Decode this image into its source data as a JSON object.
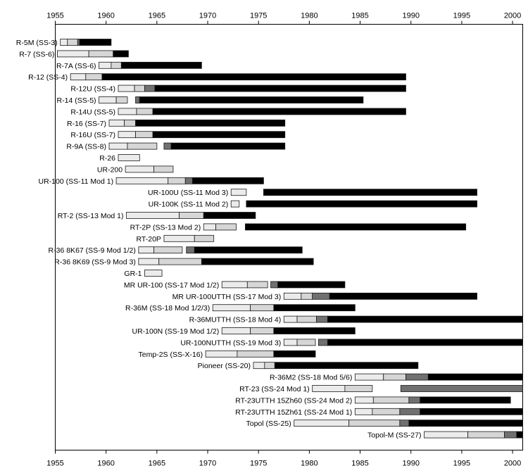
{
  "chart_data": {
    "type": "gantt",
    "xlim": [
      1955,
      2001
    ],
    "x_ticks": [
      "1955",
      "1960",
      "1965",
      "1970",
      "1975",
      "1980",
      "1985",
      "1990",
      "1995",
      "2000"
    ],
    "grid": false,
    "phase_colors": [
      "#ebebeb",
      "#d6d6d6",
      "#707070",
      "#000000"
    ],
    "rows": [
      {
        "label": "R-5M (SS-3)",
        "segments": [
          [
            1955.5,
            1956.2,
            0
          ],
          [
            1956.2,
            1957.2,
            1
          ],
          [
            1957.2,
            1957.4,
            2
          ],
          [
            1957.4,
            1960.5,
            3
          ]
        ]
      },
      {
        "label": "R-7 (SS-6)",
        "segments": [
          [
            1955.2,
            1958.3,
            0
          ],
          [
            1958.3,
            1960.7,
            1
          ],
          [
            1960.7,
            1962.2,
            3
          ]
        ]
      },
      {
        "label": "R-7A (SS-6)",
        "segments": [
          [
            1959.3,
            1960.5,
            0
          ],
          [
            1960.5,
            1961.5,
            1
          ],
          [
            1961.5,
            1969.4,
            3
          ]
        ]
      },
      {
        "label": "R-12 (SS-4)",
        "segments": [
          [
            1956.5,
            1958.0,
            0
          ],
          [
            1958.0,
            1959.6,
            1
          ],
          [
            1959.6,
            1989.5,
            3
          ]
        ]
      },
      {
        "label": "R-12U (SS-4)",
        "segments": [
          [
            1961.2,
            1962.8,
            0
          ],
          [
            1962.8,
            1963.8,
            1
          ],
          [
            1963.8,
            1964.8,
            2
          ],
          [
            1964.8,
            1989.5,
            3
          ]
        ]
      },
      {
        "label": "R-14 (SS-5)",
        "segments": [
          [
            1959.3,
            1961.0,
            0
          ],
          [
            1961.0,
            1962.1,
            1
          ],
          [
            1962.9,
            1963.3,
            2
          ],
          [
            1963.3,
            1985.3,
            3
          ]
        ]
      },
      {
        "label": "R-14U (SS-5)",
        "segments": [
          [
            1961.2,
            1963.0,
            0
          ],
          [
            1963.0,
            1964.6,
            1
          ],
          [
            1964.6,
            1989.5,
            3
          ]
        ]
      },
      {
        "label": "R-16 (SS-7)",
        "segments": [
          [
            1960.3,
            1961.8,
            0
          ],
          [
            1961.8,
            1962.9,
            1
          ],
          [
            1962.9,
            1977.6,
            3
          ]
        ]
      },
      {
        "label": "R-16U (SS-7)",
        "segments": [
          [
            1961.2,
            1962.9,
            0
          ],
          [
            1962.9,
            1964.6,
            1
          ],
          [
            1964.6,
            1977.6,
            3
          ]
        ]
      },
      {
        "label": "R-9A (SS-8)",
        "segments": [
          [
            1960.3,
            1962.1,
            0
          ],
          [
            1962.1,
            1965.0,
            1
          ],
          [
            1965.7,
            1966.4,
            2
          ],
          [
            1966.4,
            1977.6,
            3
          ]
        ]
      },
      {
        "label": "R-26",
        "segments": [
          [
            1961.2,
            1963.3,
            0
          ]
        ]
      },
      {
        "label": "UR-200",
        "segments": [
          [
            1961.9,
            1964.7,
            0
          ],
          [
            1964.7,
            1966.6,
            1
          ]
        ]
      },
      {
        "label": "UR-100 (SS-11 Mod 1)",
        "segments": [
          [
            1961.0,
            1966.1,
            0
          ],
          [
            1966.1,
            1967.8,
            1
          ],
          [
            1967.8,
            1968.5,
            2
          ],
          [
            1968.5,
            1975.5,
            3
          ]
        ]
      },
      {
        "label": "UR-100U (SS-11 Mod 3)",
        "segments": [
          [
            1972.3,
            1973.8,
            0
          ],
          [
            1975.5,
            1996.5,
            3
          ]
        ]
      },
      {
        "label": "UR-100K (SS-11 Mod 2)",
        "segments": [
          [
            1972.3,
            1973.1,
            0
          ],
          [
            1973.8,
            1996.5,
            3
          ]
        ]
      },
      {
        "label": "RT-2 (SS-13 Mod 1)",
        "segments": [
          [
            1962.0,
            1967.2,
            0
          ],
          [
            1967.2,
            1969.6,
            1
          ],
          [
            1969.6,
            1974.7,
            3
          ]
        ]
      },
      {
        "label": "RT-2P (SS-13 Mod 2)",
        "segments": [
          [
            1969.6,
            1970.8,
            0
          ],
          [
            1970.8,
            1972.8,
            1
          ],
          [
            1973.7,
            1995.4,
            3
          ]
        ]
      },
      {
        "label": "RT-20P",
        "segments": [
          [
            1965.7,
            1968.7,
            0
          ],
          [
            1968.7,
            1970.6,
            1
          ]
        ]
      },
      {
        "label": "R-36 8K67 (SS-9 Mod 1/2)",
        "segments": [
          [
            1963.2,
            1964.7,
            0
          ],
          [
            1964.7,
            1967.5,
            1
          ],
          [
            1967.9,
            1968.7,
            2
          ],
          [
            1968.7,
            1979.3,
            3
          ]
        ]
      },
      {
        "label": "R-36 8K69 (SS-9 Mod 3)",
        "segments": [
          [
            1963.2,
            1965.2,
            0
          ],
          [
            1965.2,
            1969.4,
            1
          ],
          [
            1969.4,
            1980.4,
            3
          ]
        ]
      },
      {
        "label": "GR-1",
        "segments": [
          [
            1963.8,
            1965.5,
            0
          ]
        ]
      },
      {
        "label": "MR UR-100 (SS-17 Mod 1/2)",
        "segments": [
          [
            1971.4,
            1973.9,
            0
          ],
          [
            1973.9,
            1975.9,
            1
          ],
          [
            1976.2,
            1976.9,
            2
          ],
          [
            1976.9,
            1983.5,
            3
          ]
        ]
      },
      {
        "label": "MR UR-100UTTH (SS-17 Mod 3)",
        "segments": [
          [
            1977.5,
            1979.2,
            0
          ],
          [
            1979.2,
            1980.3,
            1
          ],
          [
            1980.3,
            1982.0,
            2
          ],
          [
            1982.0,
            1996.5,
            3
          ]
        ]
      },
      {
        "label": "R-36M (SS-18 Mod 1/2/3)",
        "segments": [
          [
            1970.5,
            1974.2,
            0
          ],
          [
            1974.2,
            1976.5,
            1
          ],
          [
            1976.5,
            1984.5,
            3
          ]
        ]
      },
      {
        "label": "R-36MUTTH (SS-18 Mod 4)",
        "segments": [
          [
            1977.5,
            1978.8,
            0
          ],
          [
            1978.8,
            1980.7,
            1
          ],
          [
            1980.7,
            1981.8,
            2
          ],
          [
            1981.8,
            2001.0,
            3
          ]
        ]
      },
      {
        "label": "UR-100N (SS-19 Mod 1/2)",
        "segments": [
          [
            1971.4,
            1974.2,
            0
          ],
          [
            1974.2,
            1976.5,
            1
          ],
          [
            1976.5,
            1984.5,
            3
          ]
        ]
      },
      {
        "label": "UR-100NUTTH  (SS-19 Mod 3)",
        "segments": [
          [
            1977.5,
            1978.8,
            0
          ],
          [
            1978.8,
            1980.6,
            1
          ],
          [
            1980.9,
            1981.8,
            2
          ],
          [
            1981.8,
            2001.0,
            3
          ]
        ]
      },
      {
        "label": "Temp-2S   (SS-X-16)",
        "segments": [
          [
            1969.8,
            1972.9,
            0
          ],
          [
            1972.9,
            1976.5,
            1
          ],
          [
            1976.5,
            1980.6,
            3
          ]
        ]
      },
      {
        "label": "Pioneer    (SS-20)",
        "segments": [
          [
            1974.5,
            1975.6,
            0
          ],
          [
            1975.6,
            1976.6,
            1
          ],
          [
            1976.6,
            1990.7,
            3
          ]
        ]
      },
      {
        "label": "R-36M2  (SS-18 Mod 5/6)",
        "segments": [
          [
            1984.5,
            1987.3,
            0
          ],
          [
            1987.3,
            1989.5,
            1
          ],
          [
            1989.5,
            1991.7,
            2
          ],
          [
            1991.7,
            2001.0,
            3
          ]
        ]
      },
      {
        "label": "RT-23  (SS-24 Mod 1)",
        "segments": [
          [
            1980.3,
            1983.5,
            0
          ],
          [
            1983.5,
            1986.2,
            1
          ],
          [
            1989.0,
            2001.0,
            2
          ]
        ]
      },
      {
        "label": "RT-23UTTH 15Zh60 (SS-24 Mod 2)",
        "segments": [
          [
            1984.5,
            1986.3,
            0
          ],
          [
            1986.3,
            1989.8,
            1
          ],
          [
            1989.8,
            1990.9,
            2
          ],
          [
            1990.9,
            1999.8,
            3
          ]
        ]
      },
      {
        "label": "RT-23UTTH 15Zh61 (SS-24 Mod 1)",
        "segments": [
          [
            1984.5,
            1986.2,
            0
          ],
          [
            1986.2,
            1988.9,
            1
          ],
          [
            1988.9,
            1990.9,
            2
          ],
          [
            1990.9,
            2001.0,
            3
          ]
        ]
      },
      {
        "label": "Topol  (SS-25)",
        "segments": [
          [
            1978.5,
            1983.9,
            0
          ],
          [
            1983.9,
            1988.9,
            1
          ],
          [
            1988.9,
            1989.8,
            2
          ],
          [
            1989.8,
            2001.0,
            3
          ]
        ]
      },
      {
        "label": "Topol-M  (SS-27)",
        "segments": [
          [
            1991.3,
            1995.6,
            0
          ],
          [
            1995.6,
            1999.2,
            1
          ],
          [
            1999.2,
            2000.4,
            2
          ],
          [
            2000.4,
            2001.0,
            3
          ]
        ]
      }
    ]
  }
}
